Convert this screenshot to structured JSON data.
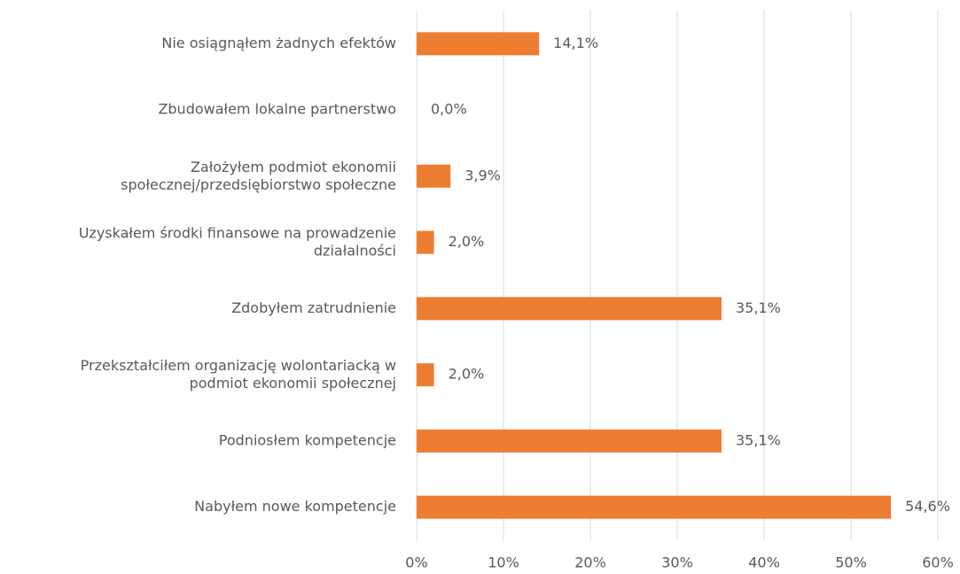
{
  "chart_data": {
    "type": "hbar",
    "categories": [
      "Nie osiągnąłem żadnych efektów",
      "Zbudowałem lokalne partnerstwo",
      "Założyłem podmiot ekonomii\nspołecznej/przedsiębiorstwo społeczne",
      "Uzyskałem środki finansowe na prowadzenie\ndziałalności",
      "Zdobyłem zatrudnienie",
      "Przekształciłem organizację wolontariacką w\npodmiot ekonomii społecznej",
      "Podniosłem kompetencje",
      "Nabyłem nowe kompetencje"
    ],
    "values": [
      14.1,
      0.0,
      3.9,
      2.0,
      35.1,
      2.0,
      35.1,
      54.6
    ],
    "value_labels": [
      "14,1%",
      "0,0%",
      "3,9%",
      "2,0%",
      "35,1%",
      "2,0%",
      "35,1%",
      "54,6%"
    ],
    "color": "#ed7d31",
    "xlim": [
      0,
      60
    ],
    "xticks": [
      {
        "value": 0,
        "label": "0%"
      },
      {
        "value": 10,
        "label": "10%"
      },
      {
        "value": 20,
        "label": "20%"
      },
      {
        "value": 30,
        "label": "30%"
      },
      {
        "value": 40,
        "label": "40%"
      },
      {
        "value": 50,
        "label": "50%"
      },
      {
        "value": 60,
        "label": "60%"
      }
    ],
    "grid": true
  }
}
